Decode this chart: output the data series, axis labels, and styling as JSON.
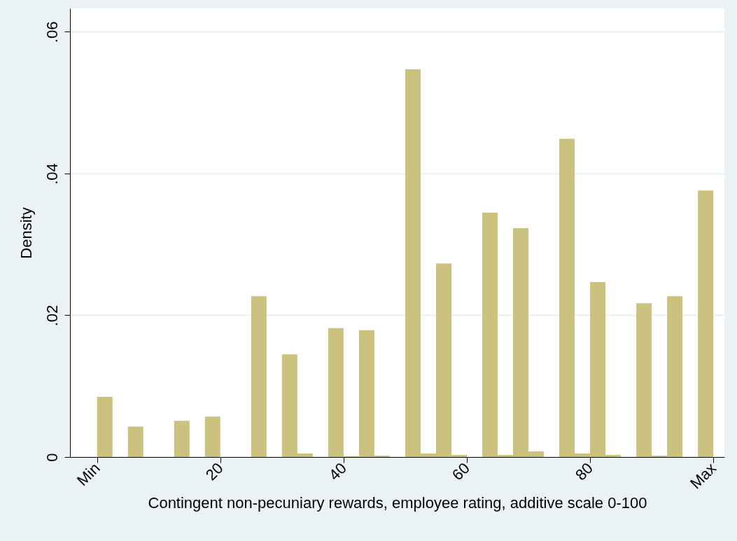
{
  "chart_data": {
    "type": "histogram",
    "xlabel": "Contingent non-pecuniary rewards, employee rating, additive scale 0-100",
    "ylabel": "Density",
    "bins": [
      0,
      2.5,
      5,
      7.5,
      10,
      12.5,
      15,
      17.5,
      20,
      22.5,
      25,
      27.5,
      30,
      32.5,
      35,
      37.5,
      40,
      42.5,
      45,
      47.5,
      50,
      52.5,
      55,
      57.5,
      60,
      62.5,
      65,
      67.5,
      70,
      72.5,
      75,
      77.5,
      80,
      82.5,
      85,
      87.5,
      90,
      92.5,
      95,
      97.5,
      100
    ],
    "values": [
      0.0085,
      0,
      0.0043,
      0,
      0,
      0.0051,
      0,
      0.0057,
      0,
      0,
      0.0227,
      0,
      0.0145,
      0.0005,
      0,
      0.0182,
      0.0001,
      0.0179,
      0.0002,
      0,
      0.0547,
      0.0005,
      0.0273,
      0.0003,
      0,
      0.0345,
      0.0003,
      0.0323,
      0.0008,
      0,
      0.0449,
      0.0005,
      0.0247,
      0.0003,
      0,
      0.0217,
      0.0002,
      0.0227,
      0,
      0.0376
    ],
    "color": "#cbc27f",
    "xlim": [
      -4.4,
      101.8
    ],
    "ylim": [
      0,
      0.0633
    ],
    "xticks": [
      {
        "value": 0,
        "label": "Min"
      },
      20,
      40,
      60,
      80,
      {
        "value": 100,
        "label": "Max"
      }
    ],
    "yticks": [
      0,
      {
        "value": 0.02,
        "label": ".02"
      },
      {
        "value": 0.04,
        "label": ".04"
      },
      {
        "value": 0.06,
        "label": ".06"
      }
    ],
    "grid": "y"
  }
}
